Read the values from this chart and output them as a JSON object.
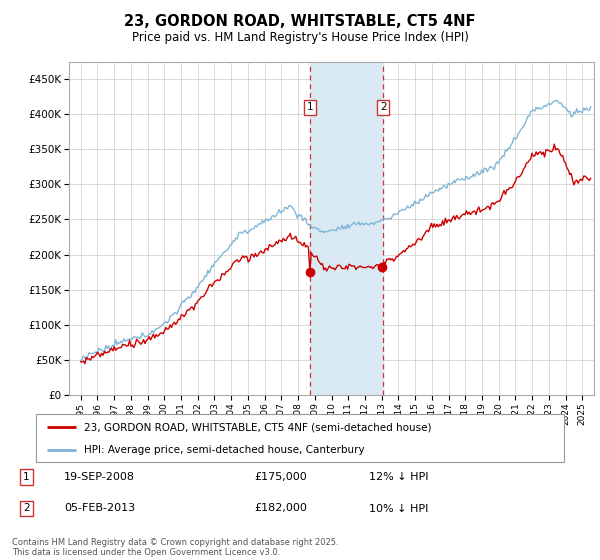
{
  "title": "23, GORDON ROAD, WHITSTABLE, CT5 4NF",
  "subtitle": "Price paid vs. HM Land Registry's House Price Index (HPI)",
  "legend_line1": "23, GORDON ROAD, WHITSTABLE, CT5 4NF (semi-detached house)",
  "legend_line2": "HPI: Average price, semi-detached house, Canterbury",
  "footnote": "Contains HM Land Registry data © Crown copyright and database right 2025.\nThis data is licensed under the Open Government Licence v3.0.",
  "transaction1_date": "19-SEP-2008",
  "transaction1_price": "£175,000",
  "transaction1_hpi": "12% ↓ HPI",
  "transaction2_date": "05-FEB-2013",
  "transaction2_price": "£182,000",
  "transaction2_hpi": "10% ↓ HPI",
  "hpi_color": "#7ab3d4",
  "price_color": "#cc0000",
  "shaded_color": "#daeaf5",
  "marker1_x": 2008.72,
  "marker2_x": 2013.09,
  "ylim_min": 0,
  "ylim_max": 475000,
  "yticks": [
    0,
    50000,
    100000,
    150000,
    200000,
    250000,
    300000,
    350000,
    400000,
    450000
  ],
  "xlim_min": 1994.3,
  "xlim_max": 2025.7
}
